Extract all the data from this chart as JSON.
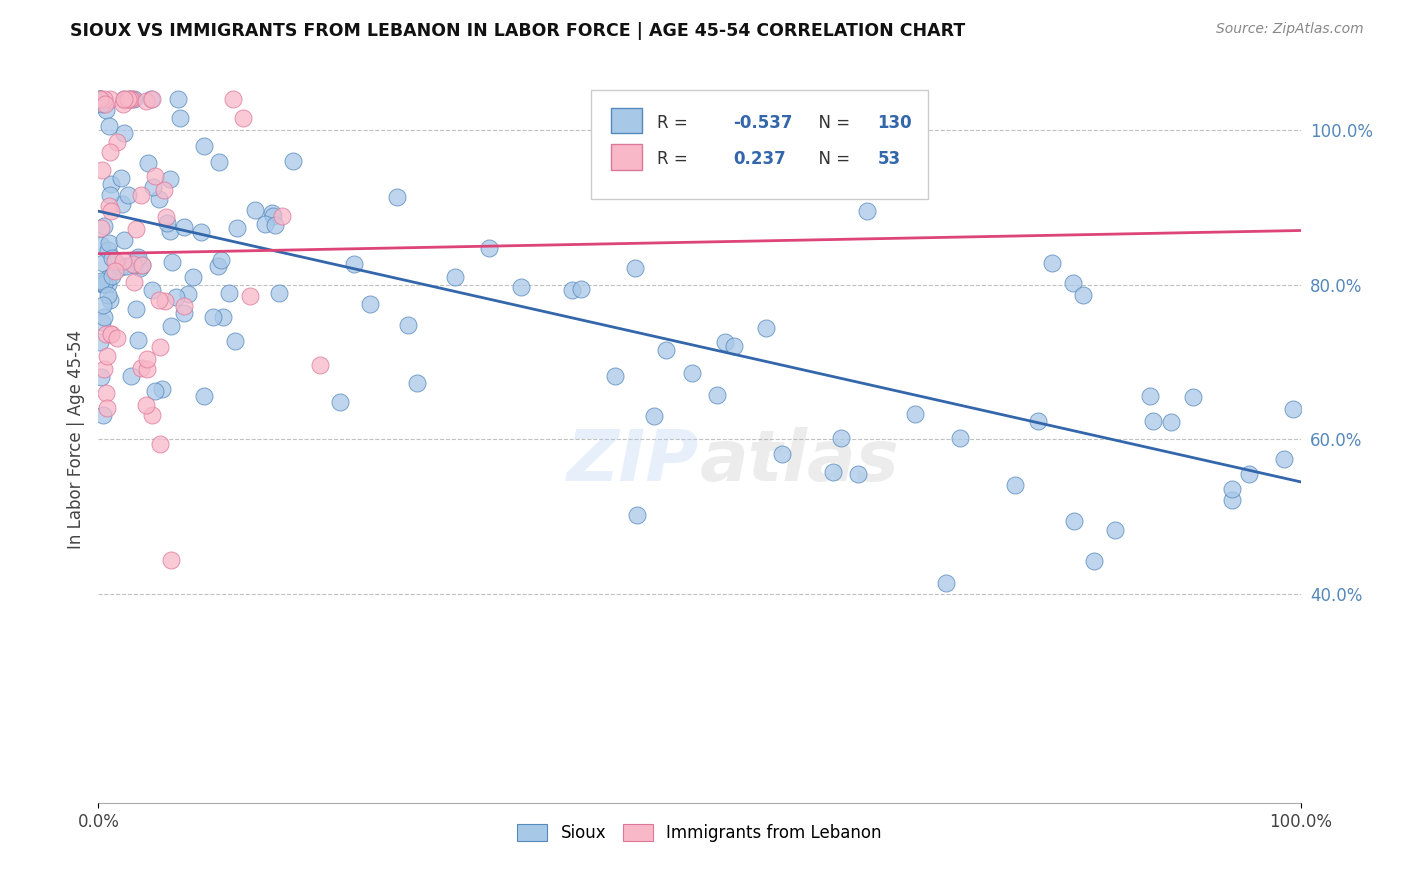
{
  "title": "SIOUX VS IMMIGRANTS FROM LEBANON IN LABOR FORCE | AGE 45-54 CORRELATION CHART",
  "source": "Source: ZipAtlas.com",
  "ylabel": "In Labor Force | Age 45-54",
  "y_tick_labels": [
    "40.0%",
    "60.0%",
    "80.0%",
    "100.0%"
  ],
  "y_tick_values": [
    0.4,
    0.6,
    0.8,
    1.0
  ],
  "xlim": [
    0.0,
    1.0
  ],
  "ylim": [
    0.13,
    1.07
  ],
  "legend_R_blue": "-0.537",
  "legend_N_blue": "130",
  "legend_R_pink": "0.237",
  "legend_N_pink": "53",
  "blue_color": "#A8C8E8",
  "blue_edge_color": "#5588BB",
  "blue_line_color": "#3366AA",
  "pink_color": "#F8B8C8",
  "pink_edge_color": "#DD7799",
  "pink_line_color": "#DD4477",
  "watermark": "ZIPatlas",
  "legend_label_blue": "Sioux",
  "legend_label_pink": "Immigrants from Lebanon",
  "blue_line_y0": 0.895,
  "blue_line_y1": 0.545,
  "pink_line_y0": 0.84,
  "pink_line_y1": 0.87
}
